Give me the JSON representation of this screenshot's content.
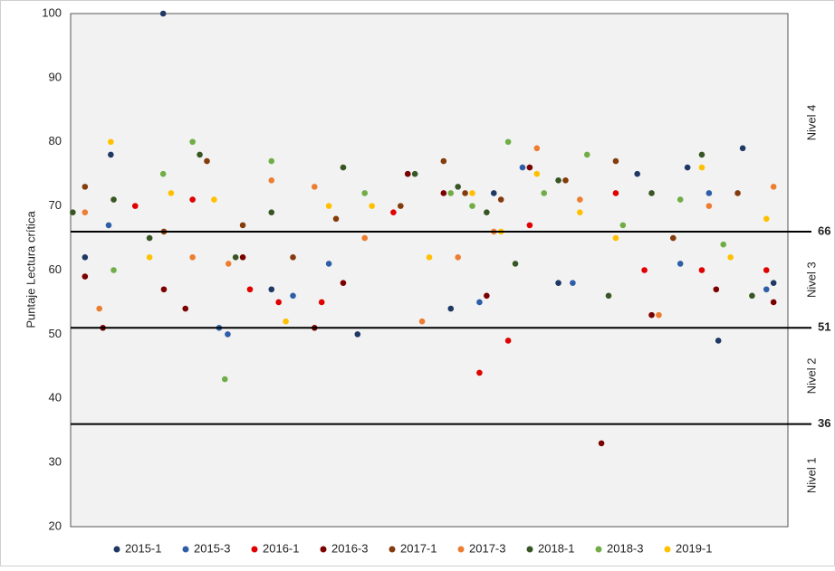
{
  "chart_data": {
    "type": "scatter",
    "ylabel": "Puntaje Lectura crítica",
    "xlim": [
      0,
      100
    ],
    "ylim": [
      20,
      100
    ],
    "yticks": [
      20,
      30,
      40,
      50,
      60,
      70,
      80,
      90,
      100
    ],
    "grid": false,
    "legend": "bottom",
    "levels": [
      66,
      51,
      36
    ],
    "level_names": [
      "Nivel 4",
      "Nivel 3",
      "Nivel 2",
      "Nivel 1"
    ],
    "series": [
      {
        "name": "2015-1",
        "color": "#1f3864",
        "x": [
          12.9,
          5.6,
          93.7,
          90.3,
          2,
          28,
          40,
          53,
          59,
          68,
          79,
          86,
          98
        ],
        "values": [
          100,
          78,
          79,
          49,
          62,
          57,
          50,
          54,
          72,
          58,
          75,
          76,
          58
        ]
      },
      {
        "name": "2015-3",
        "color": "#2e5ea8",
        "x": [
          5.3,
          20.7,
          21.9,
          31,
          36,
          47,
          57,
          70,
          85,
          89,
          97,
          63
        ],
        "values": [
          67,
          51,
          50,
          56,
          61,
          75,
          55,
          58,
          61,
          72,
          57,
          76
        ]
      },
      {
        "name": "2016-1",
        "color": "#e00000",
        "x": [
          9,
          17,
          25,
          29,
          35,
          45,
          57,
          61,
          64,
          76,
          80,
          88,
          97
        ],
        "values": [
          70,
          71,
          57,
          55,
          55,
          69,
          44,
          49,
          67,
          72,
          60,
          60,
          60
        ]
      },
      {
        "name": "2016-3",
        "color": "#7b0000",
        "x": [
          2,
          4.5,
          13,
          16,
          24,
          34,
          38,
          47,
          52,
          58,
          64,
          74,
          81,
          90,
          98
        ],
        "values": [
          59,
          51,
          57,
          54,
          62,
          51,
          58,
          75,
          72,
          56,
          76,
          33,
          53,
          57,
          55
        ]
      },
      {
        "name": "2017-1",
        "color": "#843c0c",
        "x": [
          2,
          13,
          19,
          24,
          31,
          37,
          46,
          52,
          55,
          60,
          69,
          76,
          84,
          93
        ],
        "values": [
          73,
          66,
          77,
          67,
          62,
          68,
          70,
          77,
          72,
          71,
          74,
          77,
          65,
          72
        ]
      },
      {
        "name": "2017-3",
        "color": "#ed7d31",
        "x": [
          2,
          4,
          17,
          22,
          28,
          34,
          41,
          49,
          54,
          59,
          65,
          71,
          82,
          89,
          98
        ],
        "values": [
          69,
          54,
          62,
          61,
          74,
          73,
          65,
          52,
          62,
          66,
          79,
          71,
          53,
          70,
          73
        ]
      },
      {
        "name": "2018-1",
        "color": "#375623",
        "x": [
          0.3,
          6,
          11,
          18,
          23,
          28,
          38,
          48,
          54,
          58,
          62,
          68,
          75,
          81,
          88,
          95
        ],
        "values": [
          69,
          71,
          65,
          78,
          62,
          69,
          76,
          75,
          73,
          69,
          61,
          74,
          56,
          72,
          78,
          56
        ]
      },
      {
        "name": "2018-3",
        "color": "#70ad47",
        "x": [
          12.9,
          6,
          21.5,
          17,
          28,
          41,
          53,
          56,
          61,
          66,
          72,
          77,
          85,
          91
        ],
        "values": [
          75,
          60,
          43,
          80,
          77,
          72,
          72,
          70,
          80,
          72,
          78,
          67,
          71,
          64
        ]
      },
      {
        "name": "2019-1",
        "color": "#ffc000",
        "x": [
          5.6,
          11,
          14,
          20,
          30,
          36,
          42,
          50,
          56,
          60,
          65,
          71,
          76,
          88,
          92,
          97
        ],
        "values": [
          80,
          62,
          72,
          71,
          52,
          70,
          70,
          62,
          72,
          66,
          75,
          69,
          65,
          76,
          62,
          68
        ]
      }
    ]
  }
}
